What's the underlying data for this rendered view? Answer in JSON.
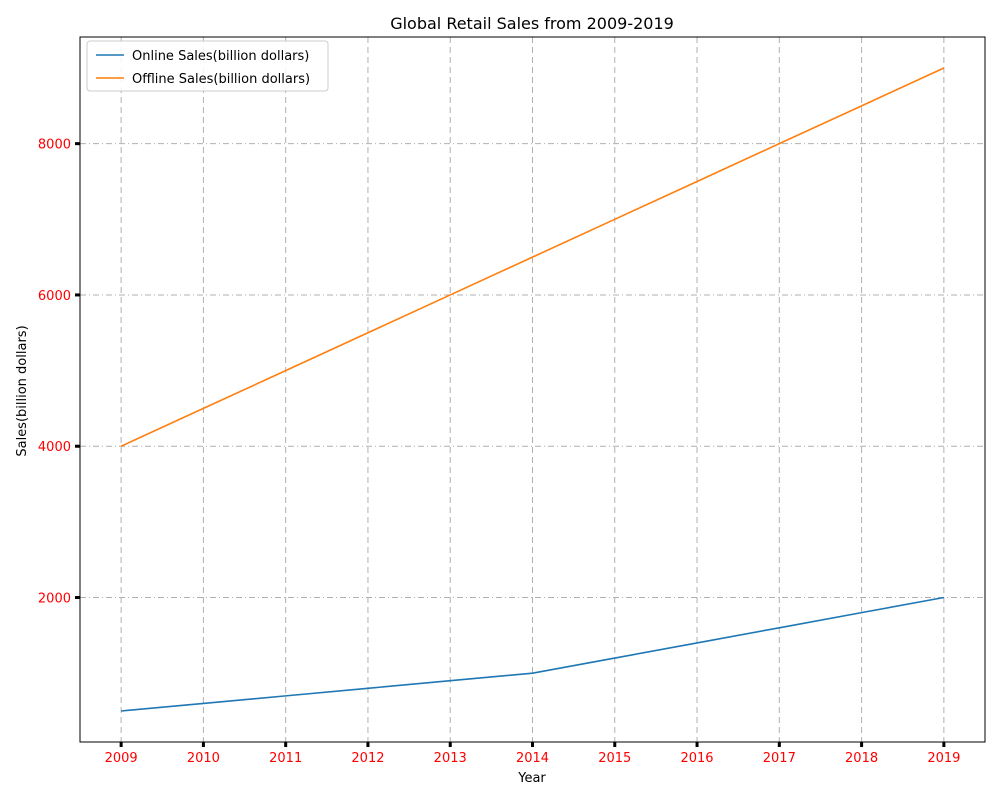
{
  "chart_data": {
    "type": "line",
    "title": "Global Retail Sales from 2009-2019",
    "xlabel": "Year",
    "ylabel": "Sales(billion dollars)",
    "x": [
      2009,
      2010,
      2011,
      2012,
      2013,
      2014,
      2015,
      2016,
      2017,
      2018,
      2019
    ],
    "x_tick_labels": [
      "2009",
      "2010",
      "2011",
      "2012",
      "2013",
      "2014",
      "2015",
      "2016",
      "2017",
      "2018",
      "2019"
    ],
    "y_ticks": [
      2000,
      4000,
      6000,
      8000
    ],
    "y_tick_labels": [
      "2000",
      "4000",
      "6000",
      "8000"
    ],
    "ylim": [
      90,
      9410
    ],
    "grid": true,
    "legend_position": "upper-left",
    "tick_label_color": "#ff0000",
    "series": [
      {
        "name": "Online Sales(billion dollars)",
        "color": "#1f77b4",
        "values": [
          500,
          600,
          700,
          800,
          900,
          1000,
          1200,
          1400,
          1600,
          1800,
          2000
        ]
      },
      {
        "name": "Offline Sales(billion dollars)",
        "color": "#ff7f0e",
        "values": [
          4000,
          4500,
          5000,
          5500,
          6000,
          6500,
          7000,
          7500,
          8000,
          8500,
          9000
        ]
      }
    ]
  }
}
